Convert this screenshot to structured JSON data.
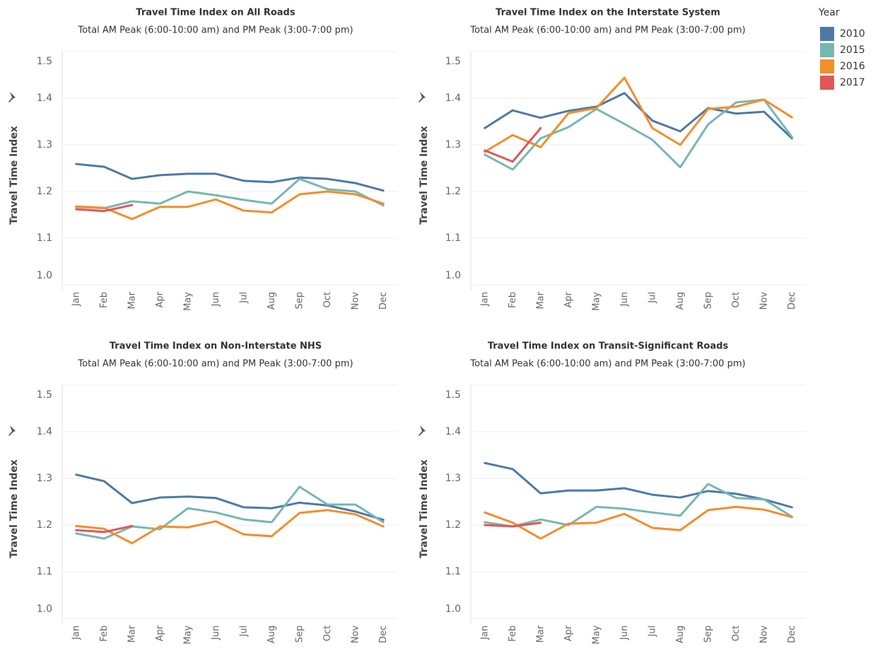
{
  "legend": {
    "title": "Year"
  },
  "chart_data": [
    {
      "type": "line",
      "title": "Travel Time Index on All Roads",
      "subtitle": "Total AM Peak (6:00-10:00 am) and PM Peak (3:00-7:00 pm)",
      "y_label": "Travel Time Index",
      "categories": [
        "Jan",
        "Feb",
        "Mar",
        "Apr",
        "May",
        "Jun",
        "Jul",
        "Aug",
        "Sep",
        "Oct",
        "Nov",
        "Dec"
      ],
      "ylim": [
        1.0,
        1.5
      ],
      "yticks": [
        {
          "value": 1,
          "label": "1.0"
        },
        1.1,
        1.2,
        1.3,
        1.4,
        1.5
      ],
      "grid": true,
      "series": [
        {
          "name": "2010",
          "color": "#4e79a7",
          "values": [
            1.259,
            1.253,
            1.227,
            1.235,
            1.238,
            1.238,
            1.223,
            1.22,
            1.23,
            1.227,
            1.218,
            1.202
          ]
        },
        {
          "name": "2015",
          "color": "#76b7b2",
          "values": [
            1.167,
            1.164,
            1.179,
            1.174,
            1.2,
            1.192,
            1.182,
            1.174,
            1.227,
            1.205,
            1.2,
            1.17
          ]
        },
        {
          "name": "2016",
          "color": "#f28e2b",
          "values": [
            1.168,
            1.165,
            1.141,
            1.167,
            1.167,
            1.183,
            1.159,
            1.155,
            1.194,
            1.2,
            1.194,
            1.174
          ]
        },
        {
          "name": "2017",
          "color": "#e15759",
          "values": [
            1.162,
            1.158,
            1.171,
            null,
            null,
            null,
            null,
            null,
            null,
            null,
            null,
            null
          ]
        }
      ]
    },
    {
      "type": "line",
      "title": "Travel Time Index on the Interstate System",
      "subtitle": "Total AM Peak (6:00-10:00 am) and PM Peak (3:00-7:00 pm)",
      "y_label": "Travel Time Index",
      "categories": [
        "Jan",
        "Feb",
        "Mar",
        "Apr",
        "May",
        "Jun",
        "Jul",
        "Aug",
        "Sep",
        "Oct",
        "Nov",
        "Dec"
      ],
      "ylim": [
        1.0,
        1.5
      ],
      "yticks": [
        {
          "value": 1,
          "label": "1.0"
        },
        1.1,
        1.2,
        1.3,
        1.4,
        1.5
      ],
      "grid": true,
      "series": [
        {
          "name": "2010",
          "color": "#4e79a7",
          "values": [
            1.336,
            1.374,
            1.358,
            1.373,
            1.382,
            1.411,
            1.352,
            1.329,
            1.379,
            1.367,
            1.371,
            1.314
          ]
        },
        {
          "name": "2015",
          "color": "#76b7b2",
          "values": [
            1.279,
            1.247,
            1.314,
            1.338,
            1.377,
            1.345,
            1.311,
            1.252,
            1.344,
            1.391,
            1.397,
            1.317
          ]
        },
        {
          "name": "2016",
          "color": "#f28e2b",
          "values": [
            1.285,
            1.321,
            1.295,
            1.368,
            1.379,
            1.444,
            1.336,
            1.3,
            1.377,
            1.382,
            1.397,
            1.359
          ]
        },
        {
          "name": "2017",
          "color": "#e15759",
          "values": [
            1.288,
            1.264,
            1.336,
            null,
            null,
            null,
            null,
            null,
            null,
            null,
            null,
            null
          ]
        }
      ]
    },
    {
      "type": "line",
      "title": "Travel Time Index on Non-Interstate NHS",
      "subtitle": "Total AM Peak (6:00-10:00 am) and PM Peak (3:00-7:00 pm)",
      "y_label": "Travel Time Index",
      "categories": [
        "Jan",
        "Feb",
        "Mar",
        "Apr",
        "May",
        "Jun",
        "Jul",
        "Aug",
        "Sep",
        "Oct",
        "Nov",
        "Dec"
      ],
      "ylim": [
        1.0,
        1.5
      ],
      "yticks": [
        {
          "value": 1,
          "label": "1.0"
        },
        1.1,
        1.2,
        1.3,
        1.4,
        1.5
      ],
      "grid": true,
      "series": [
        {
          "name": "2010",
          "color": "#4e79a7",
          "values": [
            1.308,
            1.294,
            1.247,
            1.259,
            1.261,
            1.258,
            1.238,
            1.236,
            1.248,
            1.242,
            1.229,
            1.211
          ]
        },
        {
          "name": "2015",
          "color": "#76b7b2",
          "values": [
            1.182,
            1.171,
            1.197,
            1.191,
            1.236,
            1.227,
            1.212,
            1.206,
            1.282,
            1.244,
            1.244,
            1.206
          ]
        },
        {
          "name": "2016",
          "color": "#f28e2b",
          "values": [
            1.198,
            1.192,
            1.161,
            1.197,
            1.195,
            1.208,
            1.18,
            1.176,
            1.226,
            1.232,
            1.223,
            1.197
          ]
        },
        {
          "name": "2017",
          "color": "#e15759",
          "values": [
            1.189,
            1.185,
            1.198,
            null,
            null,
            null,
            null,
            null,
            null,
            null,
            null,
            null
          ]
        }
      ]
    },
    {
      "type": "line",
      "title": "Travel Time Index on Transit-Significant Roads",
      "subtitle": "Total AM Peak (6:00-10:00 am) and PM Peak (3:00-7:00 pm)",
      "y_label": "Travel Time Index",
      "categories": [
        "Jan",
        "Feb",
        "Mar",
        "Apr",
        "May",
        "Jun",
        "Jul",
        "Aug",
        "Sep",
        "Oct",
        "Nov",
        "Dec"
      ],
      "ylim": [
        1.0,
        1.5
      ],
      "yticks": [
        {
          "value": 1,
          "label": "1.0"
        },
        1.1,
        1.2,
        1.3,
        1.4,
        1.5
      ],
      "grid": true,
      "series": [
        {
          "name": "2010",
          "color": "#4e79a7",
          "values": [
            1.333,
            1.32,
            1.268,
            1.274,
            1.274,
            1.279,
            1.265,
            1.259,
            1.273,
            1.267,
            1.255,
            1.238
          ]
        },
        {
          "name": "2015",
          "color": "#76b7b2",
          "values": [
            1.206,
            1.197,
            1.212,
            1.2,
            1.239,
            1.235,
            1.227,
            1.22,
            1.288,
            1.258,
            1.255,
            1.218
          ]
        },
        {
          "name": "2016",
          "color": "#f28e2b",
          "values": [
            1.227,
            1.205,
            1.171,
            1.203,
            1.205,
            1.224,
            1.194,
            1.189,
            1.232,
            1.239,
            1.233,
            1.217
          ]
        },
        {
          "name": "2017",
          "color": "#e15759",
          "values": [
            1.2,
            1.197,
            1.205,
            null,
            null,
            null,
            null,
            null,
            null,
            null,
            null,
            null
          ]
        }
      ]
    }
  ]
}
